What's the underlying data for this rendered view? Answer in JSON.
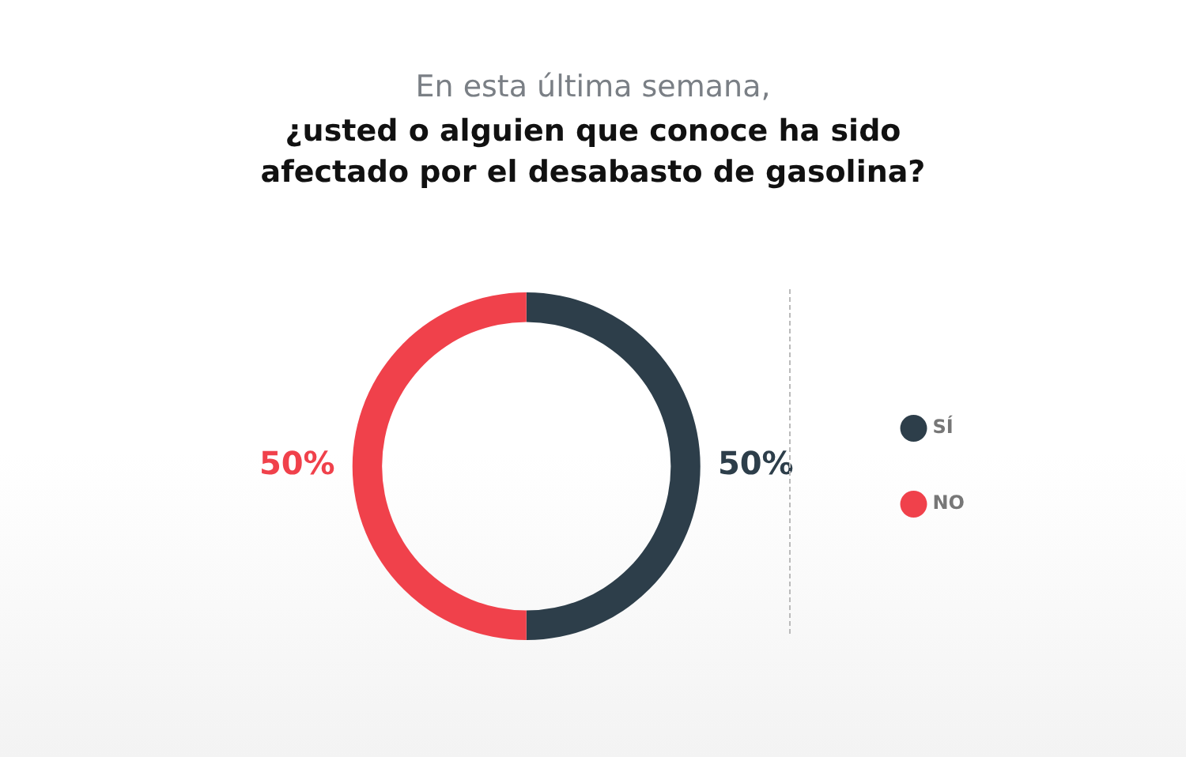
{
  "chart_data": {
    "type": "donut",
    "title": "En esta última semana,",
    "subtitle": "¿usted o alguien que conoce ha sido afectado por el desabasto de gasolina?",
    "categories": [
      "SÍ",
      "NO"
    ],
    "values": [
      50,
      50
    ],
    "colors": [
      "#2d3e4a",
      "#f0414b"
    ],
    "value_labels": [
      "50%",
      "50%"
    ],
    "legend": "right"
  }
}
